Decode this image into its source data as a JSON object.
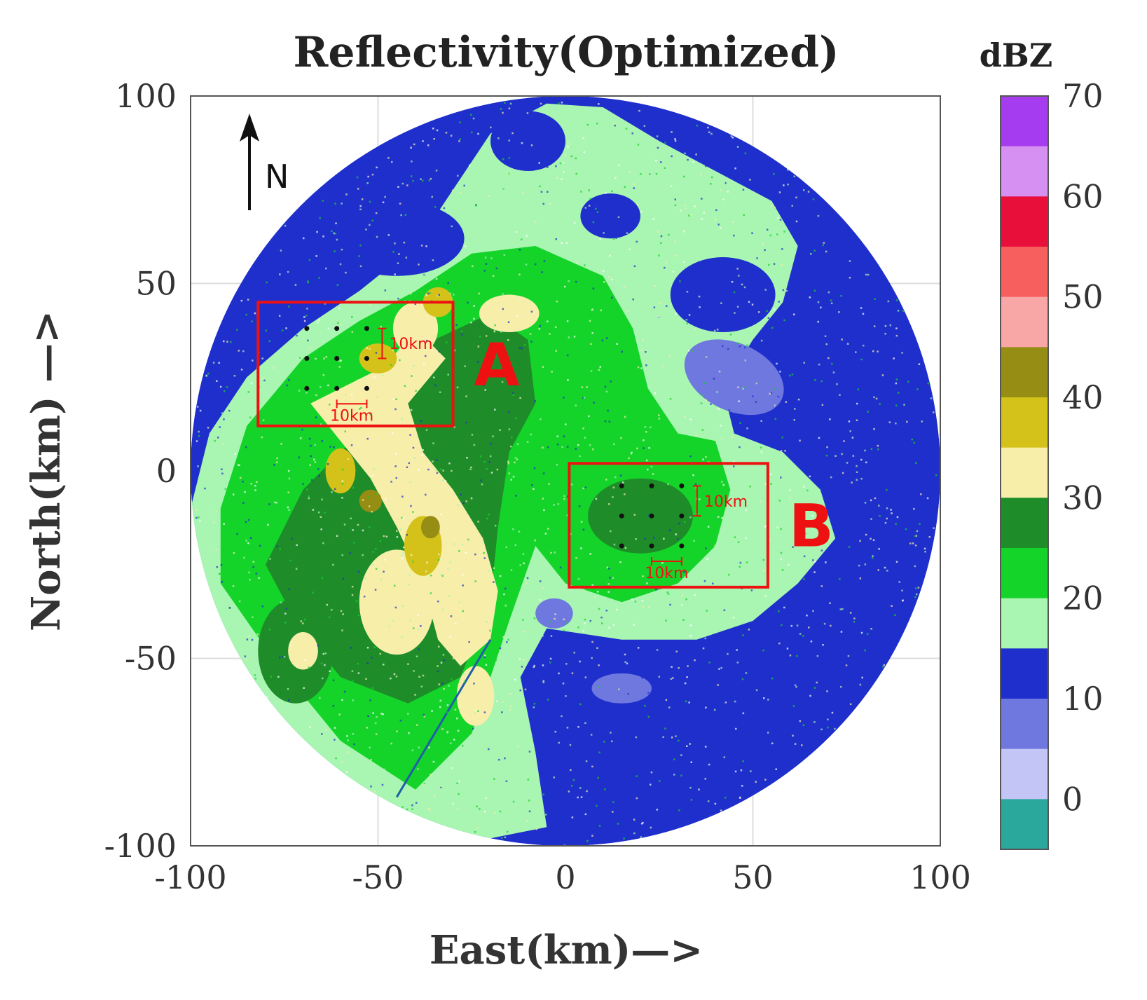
{
  "chart_data": {
    "type": "heatmap",
    "title": "Reflectivity(Optimized)",
    "xlabel": "East(km)—>",
    "ylabel": "North(km) —>",
    "xlim": [
      -100,
      100
    ],
    "ylim": [
      -100,
      100
    ],
    "xticks": [
      "-100",
      "-50",
      "0",
      "50",
      "100"
    ],
    "yticks": [
      "100",
      "50",
      "0",
      "-50",
      "-100"
    ],
    "grid": true,
    "radar_range_km": 100,
    "colorbar": {
      "unit": "dBZ",
      "range": [
        -5,
        70
      ],
      "tick_labels": [
        "70",
        "60",
        "50",
        "40",
        "30",
        "20",
        "10",
        "0"
      ],
      "bins": [
        {
          "from": 65,
          "to": 70,
          "color": "#a63cf0"
        },
        {
          "from": 60,
          "to": 65,
          "color": "#d690f2"
        },
        {
          "from": 55,
          "to": 60,
          "color": "#e8103a"
        },
        {
          "from": 50,
          "to": 55,
          "color": "#f75e5e"
        },
        {
          "from": 45,
          "to": 50,
          "color": "#f9a6a6"
        },
        {
          "from": 40,
          "to": 45,
          "color": "#968d14"
        },
        {
          "from": 35,
          "to": 40,
          "color": "#d4c21a"
        },
        {
          "from": 30,
          "to": 35,
          "color": "#f7eeaa"
        },
        {
          "from": 25,
          "to": 30,
          "color": "#1f8c2a"
        },
        {
          "from": 20,
          "to": 25,
          "color": "#14d42a"
        },
        {
          "from": 15,
          "to": 20,
          "color": "#a9f5b2"
        },
        {
          "from": 10,
          "to": 15,
          "color": "#1f2fcc"
        },
        {
          "from": 5,
          "to": 10,
          "color": "#6e78de"
        },
        {
          "from": 0,
          "to": 5,
          "color": "#c2c5f5"
        },
        {
          "from": -5,
          "to": 0,
          "color": "#2aa89c"
        }
      ]
    },
    "north_arrow": "N",
    "regions": [
      {
        "label": "A",
        "x_range": [
          -82,
          -30
        ],
        "y_range": [
          12,
          45
        ],
        "points_x": [
          -69,
          -61,
          -53
        ],
        "points_y": [
          38,
          30,
          22
        ],
        "scale_labels": [
          "10km",
          "10km"
        ]
      },
      {
        "label": "B",
        "x_range": [
          1,
          54
        ],
        "y_range": [
          -31,
          2
        ],
        "points_x": [
          15,
          23,
          31
        ],
        "points_y": [
          -4,
          -12,
          -20
        ],
        "scale_labels": [
          "10km",
          "10km"
        ]
      }
    ]
  },
  "colors": {
    "background_blue": "#1f2fcc",
    "light_green": "#a9f5b2",
    "green": "#14d42a",
    "dark_green": "#1f8c2a",
    "pale_yellow": "#f7eeaa",
    "yellow": "#d4c21a",
    "olive": "#968d14",
    "region_box": "#ee1111",
    "grid": "#dddddd",
    "axis": "#555555"
  }
}
